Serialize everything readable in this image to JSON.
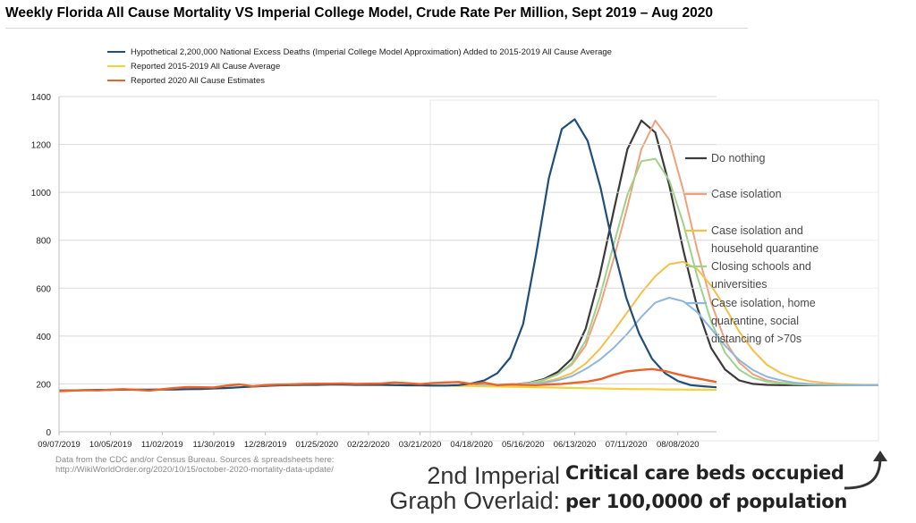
{
  "colors": {
    "hypothetical": "#1f4e79",
    "average": "#f2d33c",
    "reported2020": "#e8642a",
    "do_nothing": "#3b3b3b",
    "case_isolation": "#f0a07a",
    "case_isolation_household": "#f4c04a",
    "closing_schools": "#9ed28a",
    "home_quarantine_distancing": "#8fb6dc"
  },
  "source_note": {
    "line1": "Data from the CDC and/or Census Bureau. Sources & spreadsheets here:",
    "line2": "http://WikiWorldOrder.org/2020/10/15/october-2020-mortality-data-update/"
  },
  "captions": {
    "overlay_line1": "2nd Imperial",
    "overlay_line2": "Graph Overlaid:",
    "beds_line1": "Critical care beds occupied",
    "beds_line2": "per 100,0000 of population"
  },
  "chart_data": [
    {
      "type": "line",
      "title": "Weekly Florida All Cause Mortality VS Imperial College Model, Crude Rate Per Million, Sept 2019 – Aug 2020",
      "ylim": [
        0,
        1400
      ],
      "y_ticks": [
        0,
        200,
        400,
        600,
        800,
        1000,
        1200,
        1400
      ],
      "x_tick_labels": [
        "09/07/2019",
        "10/05/2019",
        "11/02/2019",
        "11/30/2019",
        "12/28/2019",
        "01/25/2020",
        "02/22/2020",
        "03/21/2020",
        "04/18/2020",
        "05/16/2020",
        "06/13/2020",
        "07/11/2020",
        "08/08/2020"
      ],
      "weeks": 52,
      "grid": "horizontal",
      "legend_position": "top",
      "series": [
        {
          "name": "Hypothetical 2,200,000 National Excess Deaths (Imperial College Model Approximation) Added to 2015-2019 All Cause Average",
          "color_key": "hypothetical",
          "values": [
            172,
            173,
            174,
            175,
            175,
            176,
            176,
            176,
            177,
            177,
            178,
            179,
            181,
            183,
            186,
            189,
            192,
            194,
            195,
            196,
            196,
            197,
            197,
            196,
            196,
            196,
            195,
            194,
            194,
            193,
            193,
            195,
            202,
            215,
            245,
            310,
            450,
            740,
            1060,
            1265,
            1305,
            1215,
            1020,
            770,
            560,
            410,
            305,
            245,
            212,
            195,
            190,
            186
          ]
        },
        {
          "name": "Reported 2015-2019 All Cause Average",
          "color_key": "average",
          "values": [
            172,
            173,
            174,
            175,
            175,
            176,
            176,
            176,
            177,
            177,
            178,
            179,
            181,
            183,
            186,
            189,
            192,
            194,
            195,
            196,
            196,
            197,
            197,
            196,
            196,
            196,
            195,
            194,
            194,
            193,
            193,
            192,
            191,
            190,
            189,
            188,
            187,
            186,
            185,
            184,
            183,
            182,
            181,
            180,
            179,
            178,
            178,
            177,
            177,
            176,
            176,
            175
          ]
        },
        {
          "name": "Reported 2020 All Cause Estimates",
          "color_key": "reported2020",
          "values": [
            170,
            172,
            174,
            173,
            176,
            178,
            175,
            172,
            178,
            183,
            187,
            186,
            185,
            193,
            198,
            190,
            195,
            197,
            198,
            200,
            201,
            201,
            202,
            200,
            201,
            202,
            206,
            203,
            199,
            204,
            206,
            208,
            200,
            205,
            195,
            198,
            196,
            195,
            198,
            200,
            205,
            210,
            220,
            238,
            252,
            258,
            262,
            254,
            240,
            228,
            218,
            208
          ]
        }
      ]
    },
    {
      "type": "line",
      "title": "",
      "ylabel": "Critical care beds occupied per 100,0000 of population",
      "legend_position": "right",
      "legend": [
        "Do nothing",
        "Case isolation",
        "Case isolation and household quarantine",
        "Closing schools and universities",
        "Case isolation, home quarantine, social distancing of >70s"
      ],
      "series": [
        {
          "legend_index": 0,
          "color_key": "do_nothing",
          "values": [
            195,
            195,
            196,
            199,
            205,
            220,
            250,
            305,
            430,
            650,
            920,
            1180,
            1300,
            1250,
            1030,
            760,
            520,
            350,
            260,
            215,
            200,
            196,
            195,
            195,
            195,
            195,
            195,
            195,
            195,
            195
          ]
        },
        {
          "legend_index": 1,
          "color_key": "case_isolation",
          "values": [
            195,
            195,
            196,
            199,
            204,
            217,
            240,
            280,
            360,
            520,
            720,
            940,
            1180,
            1300,
            1220,
            1010,
            760,
            540,
            380,
            290,
            240,
            215,
            205,
            200,
            198,
            197,
            196,
            196,
            195,
            195
          ]
        },
        {
          "legend_index": 2,
          "color_key": "case_isolation_household",
          "values": [
            195,
            195,
            196,
            198,
            201,
            208,
            222,
            245,
            285,
            345,
            420,
            500,
            580,
            650,
            700,
            710,
            680,
            610,
            520,
            420,
            340,
            280,
            245,
            225,
            212,
            205,
            200,
            198,
            196,
            195
          ]
        },
        {
          "legend_index": 3,
          "color_key": "closing_schools",
          "values": [
            195,
            195,
            196,
            199,
            204,
            216,
            240,
            285,
            380,
            560,
            780,
            990,
            1130,
            1140,
            1050,
            870,
            650,
            460,
            330,
            260,
            225,
            210,
            203,
            199,
            197,
            196,
            195,
            195,
            195,
            195
          ]
        },
        {
          "legend_index": 4,
          "color_key": "home_quarantine_distancing",
          "values": [
            195,
            195,
            196,
            197,
            200,
            205,
            215,
            232,
            262,
            300,
            350,
            410,
            480,
            540,
            560,
            545,
            500,
            430,
            360,
            300,
            258,
            230,
            215,
            205,
            200,
            197,
            196,
            195,
            195,
            195
          ]
        }
      ]
    }
  ]
}
